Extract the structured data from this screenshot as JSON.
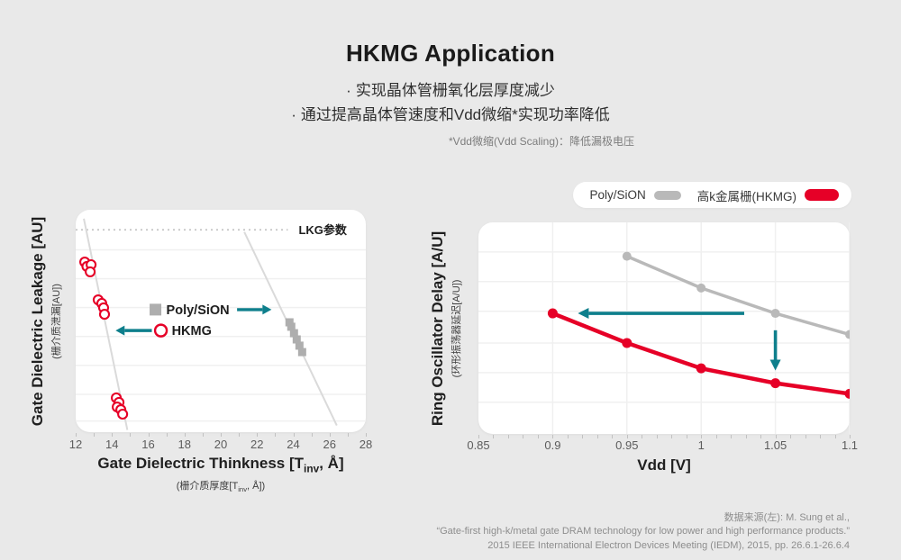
{
  "header": {
    "title": "HKMG Application",
    "bullet_prefix": "·",
    "bullets": [
      "实现晶体管栅氧化层厚度减少",
      "通过提高晶体管速度和Vdd微缩*实现功率降低"
    ],
    "footnote": "*Vdd微缩(Vdd Scaling)：降低漏极电压"
  },
  "legend": {
    "items": [
      {
        "label": "Poly/SiON",
        "color": "#b9b9b9"
      },
      {
        "label": "高k金属栅(HKMG)",
        "color": "#e60027"
      }
    ]
  },
  "colors": {
    "background": "#e9e9e9",
    "panel": "#ffffff",
    "red": "#e60027",
    "gray_series": "#b9b9b9",
    "gray_marker": "#aeaeae",
    "teal_arrow": "#0e7f8c",
    "grid": "#f0f0f0",
    "trend_line": "#dadada",
    "threshold_line": "#c4c4c4"
  },
  "chart_data": [
    {
      "type": "scatter",
      "xlabel": {
        "pre": "Gate Dielectric Thinkness [T",
        "sub": "inv",
        "post": ", Å]"
      },
      "xlabel_sub": {
        "pre": "(栅介质厚度[T",
        "sub": "inv",
        "post": ", Å])"
      },
      "ylabel": "Gate Dielectric Leakage [AU]",
      "ylabel_sub": "(栅介质泄漏[AU])",
      "xlim": [
        12,
        28
      ],
      "ylim": [
        0,
        10
      ],
      "xticks": [
        "12",
        "14",
        "16",
        "18",
        "20",
        "22",
        "24",
        "26",
        "28"
      ],
      "minor_tick_step": 1,
      "grid_y": [
        0.5,
        1.7,
        3.0,
        4.3,
        5.6,
        6.9,
        8.2
      ],
      "threshold": {
        "y": 9.1,
        "x_end": 23.7,
        "label": "LKG参数"
      },
      "trend_lines": [
        {
          "from": [
            12.45,
            9.6
          ],
          "to": [
            14.85,
            0.1
          ]
        },
        {
          "from": [
            21.3,
            9.0
          ],
          "to": [
            26.4,
            0.3
          ]
        }
      ],
      "series": [
        {
          "name": "Poly/SiON",
          "marker": "square",
          "color": "#aeaeae",
          "points": [
            [
              23.79,
              4.94
            ],
            [
              23.89,
              4.74
            ],
            [
              24.04,
              4.45
            ],
            [
              24.19,
              4.17
            ],
            [
              24.34,
              3.89
            ],
            [
              24.49,
              3.6
            ]
          ]
        },
        {
          "name": "HKMG",
          "marker": "circle",
          "color": "#e60027",
          "points": [
            [
              12.5,
              7.65
            ],
            [
              12.62,
              7.45
            ],
            [
              12.85,
              7.53
            ],
            [
              12.8,
              7.21
            ],
            [
              13.24,
              5.95
            ],
            [
              13.44,
              5.79
            ],
            [
              13.54,
              5.59
            ],
            [
              13.59,
              5.3
            ],
            [
              14.24,
              1.54
            ],
            [
              14.39,
              1.34
            ],
            [
              14.29,
              1.13
            ],
            [
              14.49,
              1.01
            ],
            [
              14.59,
              0.81
            ]
          ]
        }
      ],
      "inner_legend": [
        {
          "series": "Poly/SiON",
          "marker": "square",
          "marker_x": 16.4,
          "y": 5.51,
          "arrow": {
            "from": 20.9,
            "to": 22.8
          }
        },
        {
          "series": "HKMG",
          "marker": "circle",
          "marker_x": 16.7,
          "y": 4.57,
          "arrow": {
            "from": 16.2,
            "to": 14.2
          }
        }
      ]
    },
    {
      "type": "line",
      "xlabel": "Vdd [V]",
      "ylabel": "Ring Oscillator Delay [A/U]",
      "ylabel_sub": "(环形振荡器延迟[A/U])",
      "xlim": [
        0.85,
        1.1
      ],
      "ylim": [
        0,
        10
      ],
      "xticks": [
        "0.85",
        "0.9",
        "0.95",
        "1",
        "1.05",
        "1.1"
      ],
      "minor_tick_step": 0.01,
      "grid_x": [
        0.9,
        0.95,
        1,
        1.05,
        1.1
      ],
      "grid_y": [
        1.5,
        2.9,
        4.3,
        5.8,
        7.2,
        8.6
      ],
      "series": [
        {
          "name": "Poly/SiON",
          "color": "#b9b9b9",
          "x": [
            0.95,
            1,
            1.05,
            1.1
          ],
          "values": [
            8.4,
            6.9,
            5.7,
            4.7
          ]
        },
        {
          "name": "高k金属栅(HKMG)",
          "color": "#e60027",
          "x": [
            0.9,
            0.95,
            1,
            1.05,
            1.1
          ],
          "values": [
            5.7,
            4.3,
            3.1,
            2.4,
            1.9
          ]
        }
      ],
      "arrows": [
        {
          "from": [
            1.029,
            5.7
          ],
          "to": [
            0.917,
            5.7
          ]
        },
        {
          "from": [
            1.05,
            4.9
          ],
          "to": [
            1.05,
            3.0
          ]
        }
      ]
    }
  ],
  "citation": {
    "lines": [
      "数据来源(左): M. Sung et al.,",
      "“Gate-first high-k/metal gate DRAM technology for low power and high performance products.”",
      "2015 IEEE International Electron Devices Meeting (IEDM), 2015, pp. 26.6.1-26.6.4"
    ]
  }
}
